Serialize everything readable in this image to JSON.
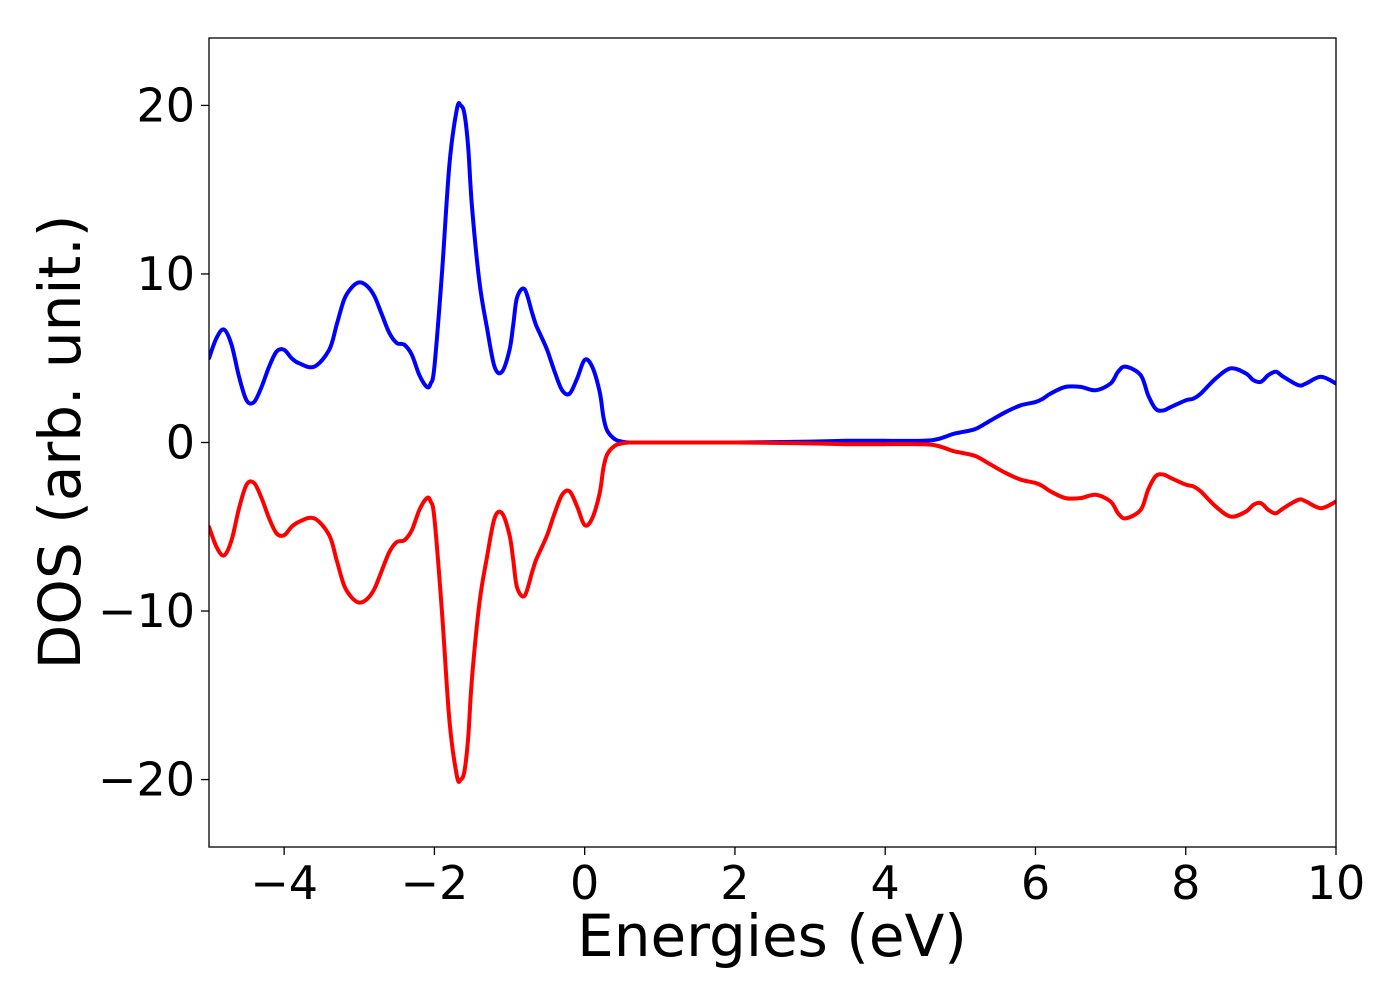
{
  "chart_data": {
    "type": "line",
    "title": "",
    "xlabel": "Energies (eV)",
    "ylabel": "DOS (arb. unit.)",
    "xlim": [
      -5,
      10
    ],
    "ylim": [
      -24,
      24
    ],
    "grid": false,
    "legend": "none",
    "x_ticks": [
      -4,
      -2,
      0,
      2,
      4,
      6,
      8,
      10
    ],
    "y_ticks": [
      -20,
      -10,
      0,
      10,
      20
    ],
    "x_tick_labels": [
      "−4",
      "−2",
      "0",
      "2",
      "4",
      "6",
      "8",
      "10"
    ],
    "y_tick_labels": [
      "−20",
      "−10",
      "0",
      "10",
      "20"
    ],
    "series": [
      {
        "color": "#0000ff",
        "x": [
          -5.0,
          -4.9,
          -4.8,
          -4.7,
          -4.6,
          -4.5,
          -4.4,
          -4.3,
          -4.2,
          -4.1,
          -4.0,
          -3.9,
          -3.8,
          -3.6,
          -3.4,
          -3.3,
          -3.2,
          -3.1,
          -3.0,
          -2.9,
          -2.8,
          -2.7,
          -2.6,
          -2.5,
          -2.4,
          -2.3,
          -2.2,
          -2.1,
          -2.05,
          -2.0,
          -1.9,
          -1.8,
          -1.7,
          -1.65,
          -1.6,
          -1.55,
          -1.5,
          -1.4,
          -1.3,
          -1.2,
          -1.1,
          -1.0,
          -0.95,
          -0.9,
          -0.8,
          -0.7,
          -0.65,
          -0.6,
          -0.5,
          -0.4,
          -0.3,
          -0.2,
          -0.1,
          0.0,
          0.1,
          0.2,
          0.25,
          0.3,
          0.4,
          0.5,
          0.6,
          0.7,
          0.8,
          1.0,
          2.0,
          3.0,
          3.5,
          4.0,
          4.5,
          4.7,
          4.9,
          5.0,
          5.2,
          5.4,
          5.6,
          5.8,
          6.0,
          6.1,
          6.2,
          6.4,
          6.6,
          6.8,
          7.0,
          7.1,
          7.2,
          7.4,
          7.5,
          7.6,
          7.7,
          7.8,
          8.0,
          8.1,
          8.2,
          8.4,
          8.6,
          8.8,
          8.9,
          9.0,
          9.1,
          9.2,
          9.3,
          9.5,
          9.6,
          9.8,
          10.0
        ],
        "values": [
          5.0,
          6.2,
          6.7,
          5.8,
          3.9,
          2.5,
          2.4,
          3.3,
          4.5,
          5.4,
          5.5,
          5.0,
          4.7,
          4.5,
          5.5,
          7.0,
          8.5,
          9.2,
          9.5,
          9.3,
          8.7,
          7.6,
          6.5,
          5.9,
          5.8,
          5.2,
          4.0,
          3.3,
          3.5,
          4.5,
          10.0,
          16.5,
          19.8,
          20.0,
          19.5,
          17.5,
          14.0,
          9.5,
          6.8,
          4.5,
          4.2,
          5.5,
          7.0,
          8.6,
          9.1,
          7.7,
          7.0,
          6.5,
          5.5,
          4.2,
          3.1,
          2.9,
          3.8,
          4.9,
          4.5,
          3.0,
          1.5,
          0.7,
          0.2,
          0.05,
          0.0,
          0.0,
          0.0,
          0.0,
          0.0,
          0.05,
          0.1,
          0.1,
          0.1,
          0.2,
          0.5,
          0.6,
          0.8,
          1.3,
          1.8,
          2.2,
          2.4,
          2.6,
          2.9,
          3.3,
          3.3,
          3.1,
          3.5,
          4.2,
          4.5,
          4.0,
          2.8,
          2.0,
          1.9,
          2.1,
          2.5,
          2.6,
          2.9,
          3.8,
          4.4,
          4.1,
          3.7,
          3.6,
          4.0,
          4.2,
          3.9,
          3.4,
          3.5,
          3.9,
          3.5
        ]
      },
      {
        "color": "#ff0000",
        "x": [
          -5.0,
          -4.9,
          -4.8,
          -4.7,
          -4.6,
          -4.5,
          -4.4,
          -4.3,
          -4.2,
          -4.1,
          -4.0,
          -3.9,
          -3.8,
          -3.6,
          -3.4,
          -3.3,
          -3.2,
          -3.1,
          -3.0,
          -2.9,
          -2.8,
          -2.7,
          -2.6,
          -2.5,
          -2.4,
          -2.3,
          -2.2,
          -2.1,
          -2.05,
          -2.0,
          -1.9,
          -1.8,
          -1.7,
          -1.65,
          -1.6,
          -1.55,
          -1.5,
          -1.4,
          -1.3,
          -1.2,
          -1.1,
          -1.0,
          -0.95,
          -0.9,
          -0.8,
          -0.7,
          -0.65,
          -0.6,
          -0.5,
          -0.4,
          -0.3,
          -0.2,
          -0.1,
          0.0,
          0.1,
          0.2,
          0.25,
          0.3,
          0.4,
          0.5,
          0.6,
          0.7,
          0.8,
          1.0,
          2.0,
          3.0,
          3.5,
          4.0,
          4.5,
          4.7,
          4.9,
          5.0,
          5.2,
          5.4,
          5.6,
          5.8,
          6.0,
          6.1,
          6.2,
          6.4,
          6.6,
          6.8,
          7.0,
          7.1,
          7.2,
          7.4,
          7.5,
          7.6,
          7.7,
          7.8,
          8.0,
          8.1,
          8.2,
          8.4,
          8.6,
          8.8,
          8.9,
          9.0,
          9.1,
          9.2,
          9.3,
          9.5,
          9.6,
          9.8,
          10.0
        ],
        "values": [
          -5.0,
          -6.2,
          -6.7,
          -5.8,
          -3.9,
          -2.5,
          -2.4,
          -3.3,
          -4.5,
          -5.4,
          -5.5,
          -5.0,
          -4.7,
          -4.5,
          -5.5,
          -7.0,
          -8.5,
          -9.2,
          -9.5,
          -9.3,
          -8.7,
          -7.6,
          -6.5,
          -5.9,
          -5.8,
          -5.2,
          -4.0,
          -3.3,
          -3.5,
          -4.5,
          -10.0,
          -16.5,
          -19.8,
          -20.0,
          -19.5,
          -17.5,
          -14.0,
          -9.5,
          -6.8,
          -4.5,
          -4.2,
          -5.5,
          -7.0,
          -8.6,
          -9.1,
          -7.7,
          -7.0,
          -6.5,
          -5.5,
          -4.2,
          -3.1,
          -2.9,
          -3.8,
          -4.9,
          -4.5,
          -3.0,
          -1.5,
          -0.7,
          -0.2,
          -0.05,
          0.0,
          0.0,
          0.0,
          0.0,
          0.0,
          -0.05,
          -0.1,
          -0.1,
          -0.1,
          -0.2,
          -0.5,
          -0.6,
          -0.8,
          -1.3,
          -1.8,
          -2.2,
          -2.4,
          -2.6,
          -2.9,
          -3.3,
          -3.3,
          -3.1,
          -3.5,
          -4.2,
          -4.5,
          -4.0,
          -2.8,
          -2.0,
          -1.9,
          -2.1,
          -2.5,
          -2.6,
          -2.9,
          -3.8,
          -4.4,
          -4.1,
          -3.7,
          -3.6,
          -4.0,
          -4.2,
          -3.9,
          -3.4,
          -3.5,
          -3.9,
          -3.5
        ]
      }
    ]
  }
}
